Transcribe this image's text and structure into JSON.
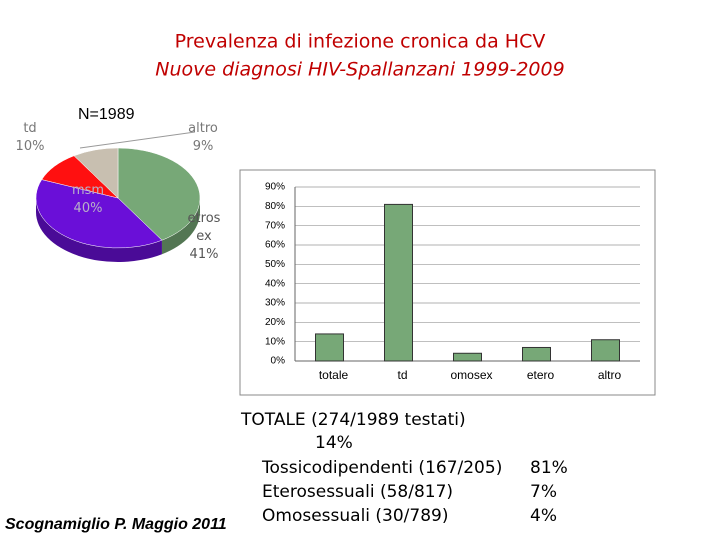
{
  "title": "Prevalenza di infezione cronica da HCV",
  "subtitle": "Nuove diagnosi HIV-Spallanzani 1999-2009",
  "note": "N=1989",
  "chart_data": [
    {
      "type": "pie",
      "categories": [
        "etros ex",
        "msm",
        "td",
        "altro"
      ],
      "values": [
        41,
        40,
        10,
        9
      ],
      "value_labels": [
        "41%",
        "40%",
        "10%",
        "9%"
      ],
      "colors": [
        "#77a877",
        "#6a0fd8",
        "#ff1010",
        "#c8bfb0"
      ]
    },
    {
      "type": "bar",
      "categories": [
        "totale",
        "td",
        "omosex",
        "etero",
        "altro"
      ],
      "values": [
        14,
        81,
        4,
        7,
        11
      ],
      "color": "#77a877",
      "ylim": [
        0,
        90
      ],
      "yticks": [
        {
          "value": 0,
          "label": "0%"
        },
        {
          "value": 10,
          "label": "10%"
        },
        {
          "value": 20,
          "label": "20%"
        },
        {
          "value": 30,
          "label": "30%"
        },
        {
          "value": 40,
          "label": "40%"
        },
        {
          "value": 50,
          "label": "50%"
        },
        {
          "value": 60,
          "label": "60%"
        },
        {
          "value": 70,
          "label": "70%"
        },
        {
          "value": 80,
          "label": "80%"
        },
        {
          "value": 90,
          "label": "90%"
        }
      ],
      "grid": true
    }
  ],
  "summary": {
    "total": "TOTALE (274/1989 testati)",
    "total_value": "14%",
    "rows": [
      [
        "Tossicodipendenti (167/205)",
        "81%"
      ],
      [
        "Eterosessuali (58/817)",
        "7%"
      ],
      [
        "Omosessuali (30/789)",
        "4%"
      ]
    ]
  },
  "author": "Scognamiglio P. Maggio 2011"
}
